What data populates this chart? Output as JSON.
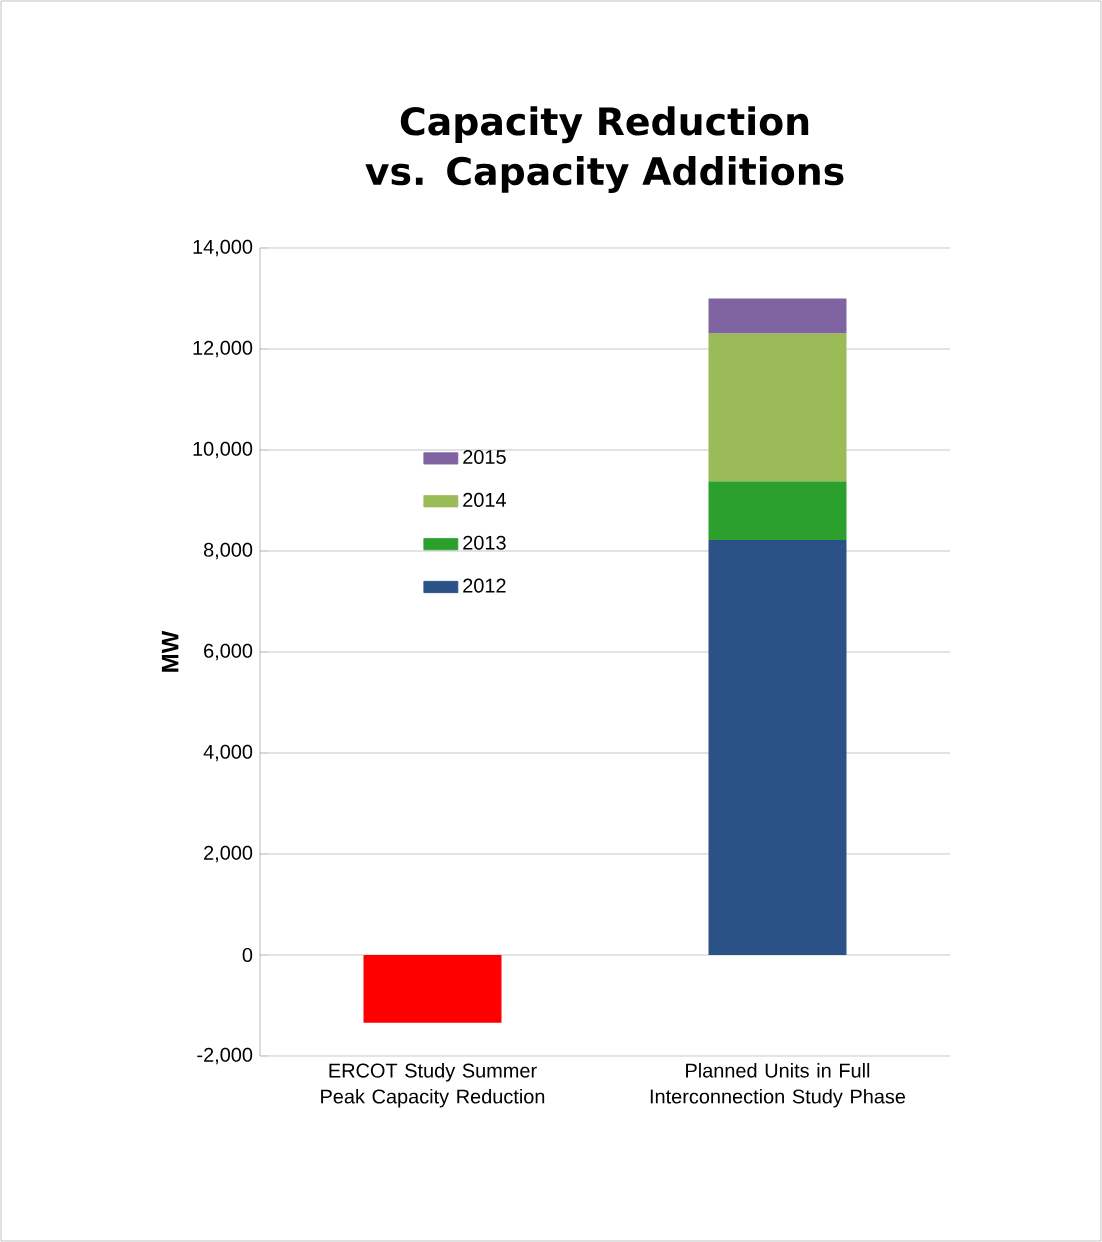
{
  "chart_data": {
    "type": "bar",
    "title": "Capacity Reduction vs. Capacity Additions",
    "ylabel": "MW",
    "categories": [
      "ERCOT Study Summer Peak Capacity Reduction",
      "Planned Units in Full Interconnection Study Phase"
    ],
    "stacked": true,
    "series": [
      {
        "color": "#ff0000",
        "values": [
          -1340,
          null
        ]
      },
      {
        "name": "2012",
        "color": "#2a5286",
        "values": [
          null,
          8220
        ]
      },
      {
        "name": "2013",
        "color": "#2ca02c",
        "values": [
          null,
          1160
        ]
      },
      {
        "name": "2014",
        "color": "#9bbb59",
        "values": [
          null,
          2930
        ]
      },
      {
        "name": "2015",
        "color": "#8064a2",
        "values": [
          null,
          690
        ]
      }
    ],
    "ylim": [
      -2000,
      14000
    ],
    "yticks": [
      {
        "value": -2000,
        "label": "-2,000"
      },
      0,
      {
        "value": 2000,
        "label": "2,000"
      },
      {
        "value": 4000,
        "label": "4,000"
      },
      {
        "value": 6000,
        "label": "6,000"
      },
      {
        "value": 8000,
        "label": "8,000"
      },
      {
        "value": 10000,
        "label": "10,000"
      },
      {
        "value": 12000,
        "label": "12,000"
      },
      {
        "value": 14000,
        "label": "14,000"
      }
    ],
    "grid": "y",
    "legend": "left"
  }
}
